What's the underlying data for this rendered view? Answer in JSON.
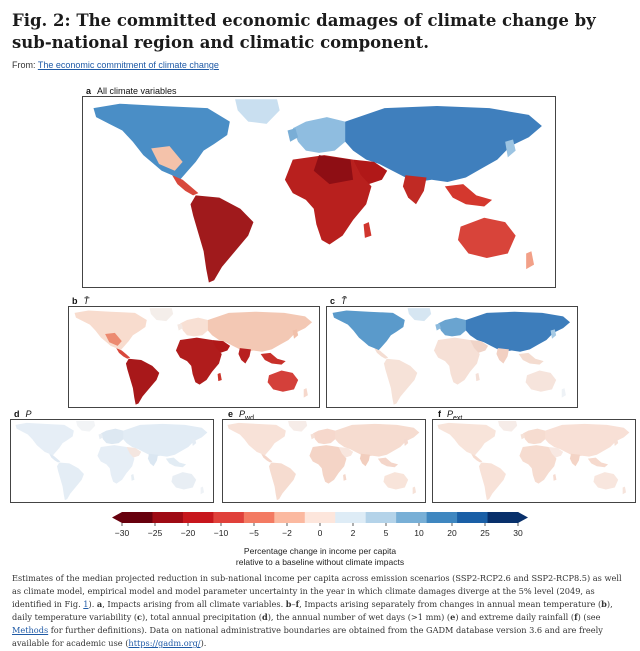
{
  "figure": {
    "title": "Fig. 2: The committed economic damages of climate change by sub-national region and climatic component.",
    "from_prefix": "From: ",
    "from_link": "The economic commitment of climate change"
  },
  "panels": {
    "a": {
      "letter": "a",
      "label": "All climate variables"
    },
    "b": {
      "letter": "b",
      "label": "T̄"
    },
    "c": {
      "letter": "c",
      "label": "T̃"
    },
    "d": {
      "letter": "d",
      "label": "P"
    },
    "e": {
      "letter": "e",
      "label": "P",
      "subscript": "wd"
    },
    "f": {
      "letter": "f",
      "label": "P",
      "subscript": "ext"
    }
  },
  "colorbar": {
    "ticks": [
      "−30",
      "−25",
      "−20",
      "−10",
      "−5",
      "−2",
      "0",
      "2",
      "5",
      "10",
      "20",
      "25",
      "30"
    ],
    "colors": [
      "#67000d",
      "#9e0a14",
      "#c7161c",
      "#e0403a",
      "#f37a62",
      "#fbb9a0",
      "#fde6dc",
      "#deecf6",
      "#b4d3e9",
      "#78afd6",
      "#3f87c0",
      "#1a5fa6",
      "#08306b"
    ],
    "caption_line1": "Percentage change in income per capita",
    "caption_line2": "relative to a baseline without climate impacts"
  },
  "caption": {
    "part1": "Estimates of the median projected reduction in sub-national income per capita across emission scenarios (SSP2-RCP2.6 and SSP2-RCP8.5) as well as climate model, empirical model and model parameter uncertainty in the year in which climate damages diverge at the 5% level (2049, as identified in Fig. ",
    "fig1_link": "1",
    "part2": "). ",
    "a_bold": "a",
    "part3": ", Impacts arising from all climate variables. ",
    "bf_bold": "b",
    "dash": "–",
    "f_bold": "f",
    "part4": ", Impacts arising separately from changes in annual mean temperature (",
    "b2": "b",
    "part5": "), daily temperature variability (",
    "c2": "c",
    "part6": "), total annual precipitation (",
    "d2": "d",
    "part7": "), the annual number of wet days (>1 mm) (",
    "e2": "e",
    "part8": ") and extreme daily rainfall (",
    "f2": "f",
    "part9": ") (see ",
    "methods_link": "Methods",
    "part10": " for further definitions). Data on national administrative boundaries are obtained from the GADM database version 3.6 and are freely available for academic use (",
    "gadm_link": "https://gadm.org/",
    "part11": ")."
  }
}
